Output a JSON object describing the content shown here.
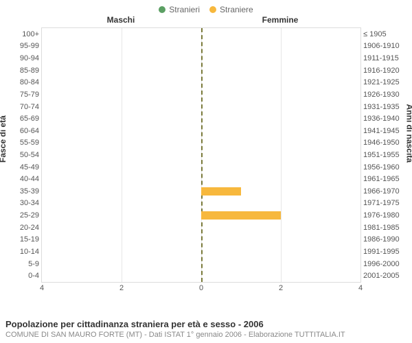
{
  "legend": {
    "items": [
      {
        "label": "Stranieri",
        "color": "#5b9f63"
      },
      {
        "label": "Straniere",
        "color": "#f7b83d"
      }
    ]
  },
  "panel_headers": {
    "left": "Maschi",
    "right": "Femmine"
  },
  "y_axis_left_title": "Fasce di età",
  "y_axis_right_title": "Anni di nascita",
  "age_bands": [
    "0-4",
    "5-9",
    "10-14",
    "15-19",
    "20-24",
    "25-29",
    "30-34",
    "35-39",
    "40-44",
    "45-49",
    "50-54",
    "55-59",
    "60-64",
    "65-69",
    "70-74",
    "75-79",
    "80-84",
    "85-89",
    "90-94",
    "95-99",
    "100+"
  ],
  "birth_years": [
    "2001-2005",
    "1996-2000",
    "1991-1995",
    "1986-1990",
    "1981-1985",
    "1976-1980",
    "1971-1975",
    "1966-1970",
    "1961-1965",
    "1956-1960",
    "1951-1955",
    "1946-1950",
    "1941-1945",
    "1936-1940",
    "1931-1935",
    "1926-1930",
    "1921-1925",
    "1916-1920",
    "1911-1915",
    "1906-1910",
    "≤ 1905"
  ],
  "x_axis": {
    "max": 4,
    "ticks": [
      4,
      2,
      0,
      2,
      4
    ]
  },
  "bars": {
    "male_color": "#5b9f63",
    "female_color": "#f7b83d",
    "male": [
      0,
      0,
      0,
      0,
      0,
      0,
      0,
      0,
      0,
      0,
      0,
      0,
      0,
      0,
      0,
      0,
      0,
      0,
      0,
      0,
      0
    ],
    "female": [
      0,
      0,
      0,
      0,
      0,
      2,
      0,
      1,
      0,
      0,
      0,
      0,
      0,
      0,
      0,
      0,
      0,
      0,
      0,
      0,
      0
    ]
  },
  "grid_color": "#e6e6e6",
  "center_line_color": "#7a7a3a",
  "border_color": "#dcdcdc",
  "background_color": "#ffffff",
  "footer": {
    "title": "Popolazione per cittadinanza straniera per età e sesso - 2006",
    "subtitle": "COMUNE DI SAN MAURO FORTE (MT) - Dati ISTAT 1° gennaio 2006 - Elaborazione TUTTITALIA.IT"
  }
}
